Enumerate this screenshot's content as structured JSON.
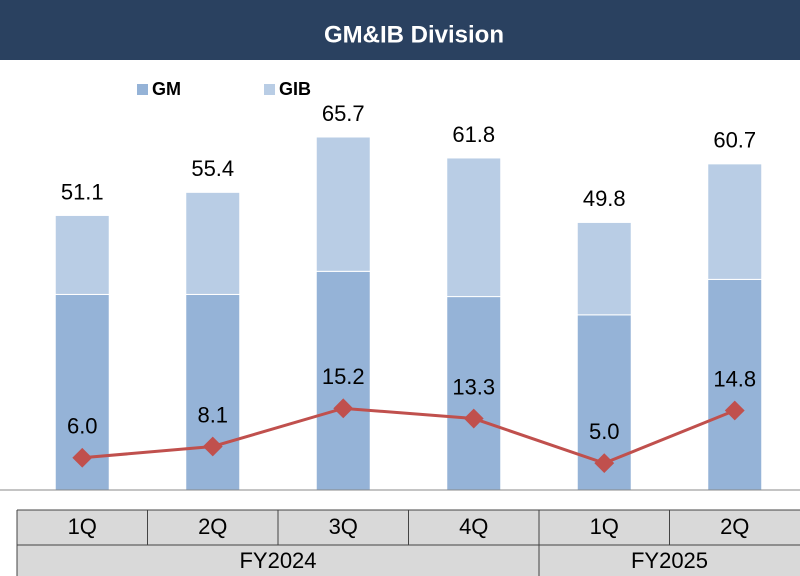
{
  "chart_data": {
    "type": "bar",
    "title": "GM&IB Division",
    "categories": [
      "1Q",
      "2Q",
      "3Q",
      "4Q",
      "1Q",
      "2Q"
    ],
    "x_groups": [
      {
        "name": "FY2024",
        "count": 4
      },
      {
        "name": "FY2025",
        "count": 2
      }
    ],
    "series": [
      {
        "name": "GM",
        "color": "#95b3d7",
        "values": [
          36.4,
          36.4,
          40.7,
          36.0,
          32.6,
          39.2
        ]
      },
      {
        "name": "GIB",
        "color": "#b9cde5",
        "values": [
          14.7,
          19.0,
          25.0,
          25.8,
          17.2,
          21.5
        ]
      }
    ],
    "totals": [
      51.1,
      55.4,
      65.7,
      61.8,
      49.8,
      60.7
    ],
    "line": {
      "type": "line",
      "color": "#c0504d",
      "values": [
        6.0,
        8.1,
        15.2,
        13.3,
        5.0,
        14.8
      ],
      "value_labels": [
        "6.0",
        "8.1",
        "15.2",
        "13.3",
        "5.0",
        "14.8"
      ]
    },
    "legend": "top"
  }
}
